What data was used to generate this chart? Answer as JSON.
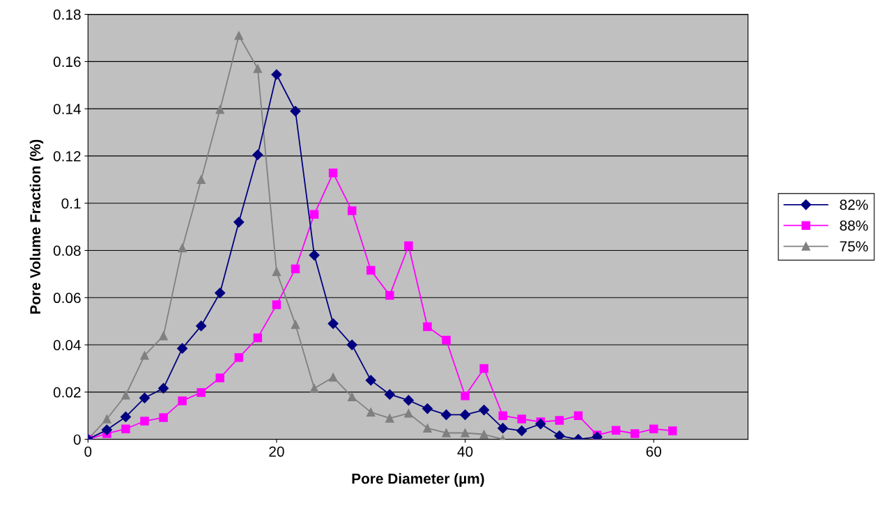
{
  "chart_data": {
    "type": "line",
    "xlabel": "Pore Diameter (µm)",
    "ylabel": "Pore Volume Fraction (%)",
    "xlim": [
      0,
      70
    ],
    "xticks": [
      0,
      20,
      40,
      60
    ],
    "ylim": [
      0,
      0.18
    ],
    "yticks": [
      0,
      0.02,
      0.04,
      0.06,
      0.08,
      0.1,
      0.12,
      0.14,
      0.16,
      0.18
    ],
    "grid": "y",
    "legend": "right",
    "line_style": "solid",
    "series": [
      {
        "name": "82%",
        "color": "#000080",
        "marker": "diamond",
        "x": [
          0,
          2,
          4,
          6,
          8,
          10,
          12,
          14,
          16,
          18,
          20,
          22,
          24,
          26,
          28,
          30,
          32,
          34,
          36,
          38,
          40,
          42,
          44,
          46,
          48,
          50,
          52,
          54
        ],
        "values": [
          0,
          0.004,
          0.0095,
          0.0175,
          0.0216,
          0.0385,
          0.048,
          0.062,
          0.092,
          0.1205,
          0.1545,
          0.139,
          0.078,
          0.049,
          0.04,
          0.025,
          0.019,
          0.0165,
          0.013,
          0.0104,
          0.0104,
          0.0124,
          0.0047,
          0.0036,
          0.0065,
          0.0015,
          0,
          0.001
        ]
      },
      {
        "name": "88%",
        "color": "#ff00ff",
        "marker": "square",
        "x": [
          0,
          2,
          4,
          6,
          8,
          10,
          12,
          14,
          16,
          18,
          20,
          22,
          24,
          26,
          28,
          30,
          32,
          34,
          36,
          38,
          40,
          42,
          44,
          46,
          48,
          50,
          52,
          54,
          56,
          58,
          60,
          62
        ],
        "values": [
          0,
          0.0024,
          0.0044,
          0.0077,
          0.0092,
          0.0163,
          0.0198,
          0.026,
          0.0346,
          0.043,
          0.057,
          0.0722,
          0.0953,
          0.1128,
          0.0968,
          0.0716,
          0.061,
          0.082,
          0.0477,
          0.042,
          0.0184,
          0.03,
          0.01,
          0.0086,
          0.0074,
          0.008,
          0.01,
          0.0018,
          0.0038,
          0.0024,
          0.0044,
          0.0036
        ]
      },
      {
        "name": "75%",
        "color": "#808080",
        "marker": "triangle",
        "x": [
          0,
          2,
          4,
          6,
          8,
          10,
          12,
          14,
          16,
          18,
          20,
          22,
          24,
          26,
          28,
          30,
          32,
          34,
          36,
          38,
          40,
          42,
          44
        ],
        "values": [
          0,
          0.0086,
          0.0187,
          0.0355,
          0.0438,
          0.081,
          0.11,
          0.1397,
          0.171,
          0.157,
          0.071,
          0.0486,
          0.0216,
          0.0263,
          0.018,
          0.0115,
          0.0089,
          0.011,
          0.0047,
          0.0027,
          0.0027,
          0.0021,
          0
        ]
      }
    ]
  }
}
